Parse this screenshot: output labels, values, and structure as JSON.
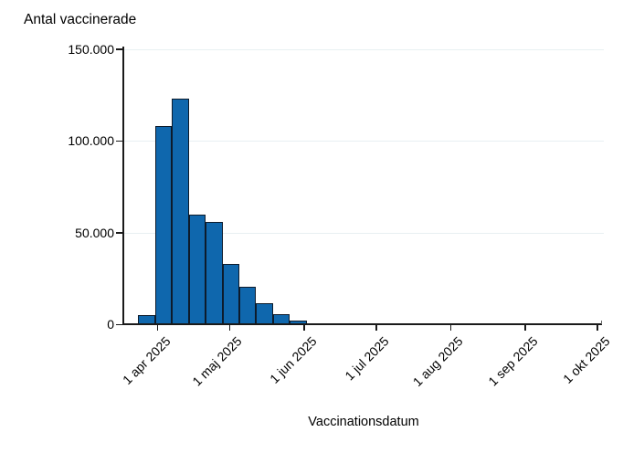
{
  "chart_data": {
    "type": "bar",
    "subtype": "histogram",
    "title": "Antal vaccinerade",
    "xlabel": "Vaccinationsdatum",
    "ylabel": "Antal vaccinerade",
    "ylim": [
      0,
      150000
    ],
    "xlim": [
      "2025-03-24",
      "2025-10-02"
    ],
    "grid": "horizontal",
    "legend": "none",
    "bin_width_days": 7,
    "y_ticks": [
      {
        "value": 0,
        "label": "0"
      },
      {
        "value": 50000,
        "label": "50.000"
      },
      {
        "value": 100000,
        "label": "100.000"
      },
      {
        "value": 150000,
        "label": "150.000"
      }
    ],
    "x_ticks": [
      {
        "date": "2025-04-01",
        "label": "1 apr 2025"
      },
      {
        "date": "2025-05-01",
        "label": "1 maj 2025"
      },
      {
        "date": "2025-06-01",
        "label": "1 jun 2025"
      },
      {
        "date": "2025-07-01",
        "label": "1 jul 2025"
      },
      {
        "date": "2025-08-01",
        "label": "1 aug 2025"
      },
      {
        "date": "2025-09-01",
        "label": "1 sep 2025"
      },
      {
        "date": "2025-10-01",
        "label": "1 okt 2025"
      }
    ],
    "series": [
      {
        "name": "Antal vaccinerade",
        "bins": [
          {
            "start": "2025-03-24",
            "value": 5000
          },
          {
            "start": "2025-03-31",
            "value": 108000
          },
          {
            "start": "2025-04-07",
            "value": 123000
          },
          {
            "start": "2025-04-14",
            "value": 60000
          },
          {
            "start": "2025-04-21",
            "value": 56000
          },
          {
            "start": "2025-04-28",
            "value": 33000
          },
          {
            "start": "2025-05-05",
            "value": 20500
          },
          {
            "start": "2025-05-12",
            "value": 11500
          },
          {
            "start": "2025-05-19",
            "value": 5600
          },
          {
            "start": "2025-05-26",
            "value": 2300
          },
          {
            "start": "2025-06-02",
            "value": 800
          },
          {
            "start": "2025-06-09",
            "value": 0
          },
          {
            "start": "2025-06-16",
            "value": 0
          },
          {
            "start": "2025-06-23",
            "value": 0
          },
          {
            "start": "2025-06-30",
            "value": 0
          },
          {
            "start": "2025-07-07",
            "value": 0
          },
          {
            "start": "2025-07-14",
            "value": 0
          },
          {
            "start": "2025-07-21",
            "value": 0
          },
          {
            "start": "2025-07-28",
            "value": 0
          },
          {
            "start": "2025-08-04",
            "value": 0
          },
          {
            "start": "2025-08-11",
            "value": 0
          },
          {
            "start": "2025-08-18",
            "value": 0
          },
          {
            "start": "2025-08-25",
            "value": 0
          },
          {
            "start": "2025-09-01",
            "value": 0
          },
          {
            "start": "2025-09-08",
            "value": 0
          },
          {
            "start": "2025-09-15",
            "value": 0
          },
          {
            "start": "2025-09-22",
            "value": 0
          },
          {
            "start": "2025-09-29",
            "value": 0
          }
        ]
      }
    ]
  },
  "colors": {
    "bar_fill": "#0f67ad",
    "bar_border": "#0d1b2b",
    "gridline": "#e8f0f2",
    "axis": "#1a1a1a",
    "text": "#000000",
    "background": "#ffffff"
  }
}
